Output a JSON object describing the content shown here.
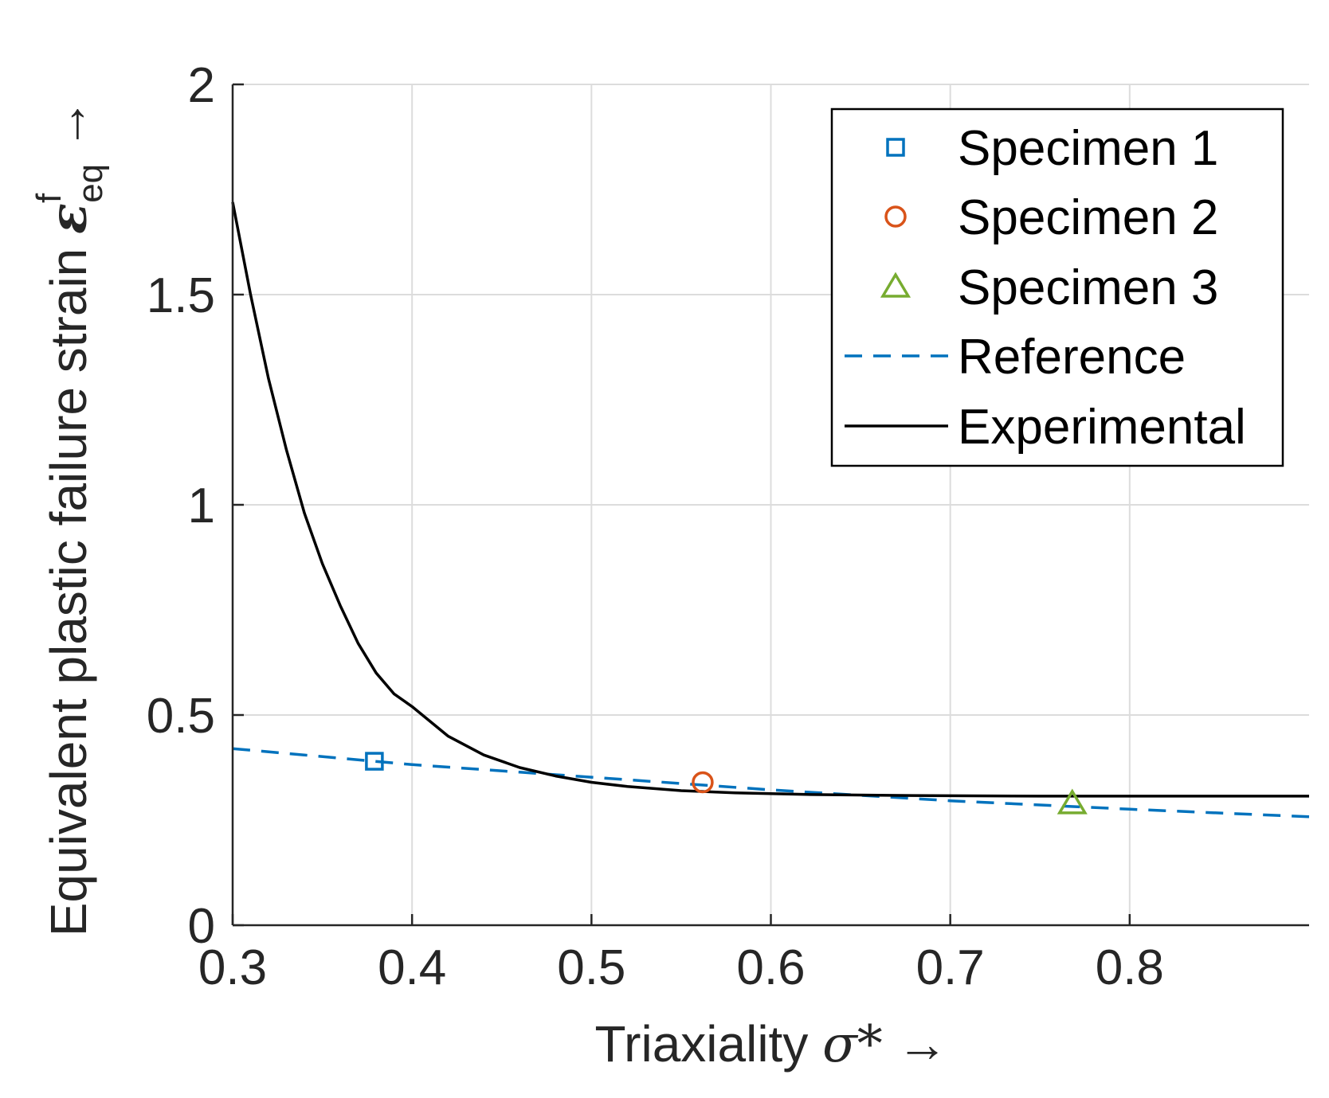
{
  "chart_data": {
    "type": "line",
    "xlabel": "Triaxiality",
    "xlabel_symbol": "σ*",
    "xlabel_arrow": "→",
    "ylabel": "Equivalent plastic failure strain",
    "ylabel_symbol": "ε",
    "ylabel_superscript": "f",
    "ylabel_subscript": "eq",
    "ylabel_arrow": "→",
    "xlim": [
      0.3,
      0.9
    ],
    "ylim": [
      0,
      2
    ],
    "xticks": [
      0.3,
      0.4,
      0.5,
      0.6,
      0.7,
      0.8
    ],
    "xtick_labels": [
      "0.3",
      "0.4",
      "0.5",
      "0.6",
      "0.7",
      "0.8"
    ],
    "yticks": [
      0,
      0.5,
      1,
      1.5,
      2
    ],
    "ytick_labels": [
      "0",
      "0.5",
      "1",
      "1.5",
      "2"
    ],
    "grid": true,
    "legend_position": "top-right",
    "series": [
      {
        "name": "Specimen 1",
        "kind": "marker",
        "marker": "square",
        "color": "#0072BD",
        "x": [
          0.379
        ],
        "y": [
          0.39
        ]
      },
      {
        "name": "Specimen 2",
        "kind": "marker",
        "marker": "circle",
        "color": "#D95319",
        "x": [
          0.562
        ],
        "y": [
          0.34
        ]
      },
      {
        "name": "Specimen 3",
        "kind": "marker",
        "marker": "triangle",
        "color": "#77AC30",
        "x": [
          0.768
        ],
        "y": [
          0.29
        ]
      },
      {
        "name": "Reference",
        "kind": "line",
        "style": "dashed",
        "color": "#0072BD",
        "x": [
          0.3,
          0.4,
          0.5,
          0.6,
          0.7,
          0.8,
          0.9
        ],
        "y": [
          0.42,
          0.382,
          0.352,
          0.322,
          0.296,
          0.276,
          0.258
        ]
      },
      {
        "name": "Experimental",
        "kind": "line",
        "style": "solid",
        "color": "#000000",
        "x": [
          0.3,
          0.31,
          0.32,
          0.33,
          0.34,
          0.35,
          0.36,
          0.37,
          0.38,
          0.39,
          0.4,
          0.42,
          0.44,
          0.46,
          0.48,
          0.5,
          0.52,
          0.55,
          0.58,
          0.62,
          0.66,
          0.7,
          0.75,
          0.8,
          0.85,
          0.9
        ],
        "y": [
          1.72,
          1.5,
          1.3,
          1.13,
          0.98,
          0.86,
          0.76,
          0.67,
          0.6,
          0.55,
          0.52,
          0.45,
          0.405,
          0.375,
          0.355,
          0.34,
          0.33,
          0.32,
          0.315,
          0.311,
          0.309,
          0.308,
          0.307,
          0.307,
          0.307,
          0.307
        ]
      }
    ]
  }
}
